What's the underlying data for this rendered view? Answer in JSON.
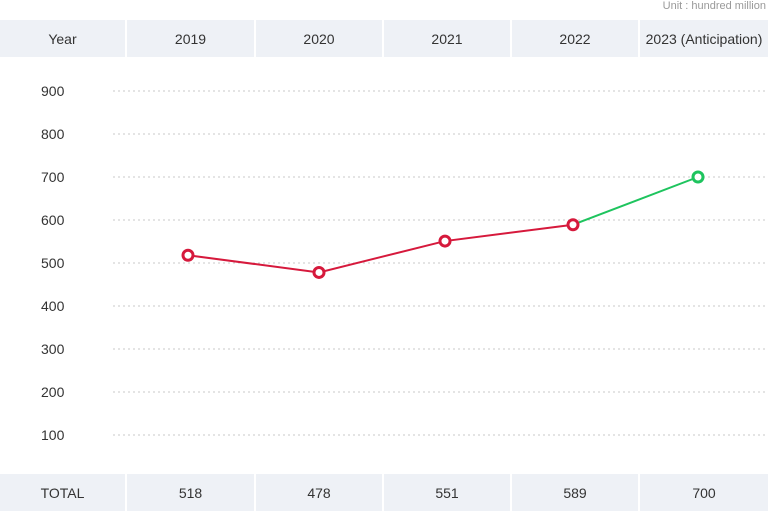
{
  "unit_label": "Unit : hundred million",
  "header": {
    "first_label": "Year",
    "years": [
      "2019",
      "2020",
      "2021",
      "2022",
      "2023 (Anticipation)"
    ]
  },
  "footer": {
    "first_label": "TOTAL",
    "totals": [
      "518",
      "478",
      "551",
      "589",
      "700"
    ]
  },
  "chart_data": {
    "type": "line",
    "categories": [
      "2019",
      "2020",
      "2021",
      "2022",
      "2023 (Anticipation)"
    ],
    "values": [
      518,
      478,
      551,
      589,
      700
    ],
    "y_ticks": [
      "900",
      "800",
      "700",
      "600",
      "500",
      "400",
      "300",
      "200",
      "100"
    ],
    "ylim": [
      100,
      900
    ],
    "grid": true,
    "colors": {
      "actual": "#d6193c",
      "anticipation": "#1ec45e",
      "grid": "#c8c8c8"
    }
  }
}
